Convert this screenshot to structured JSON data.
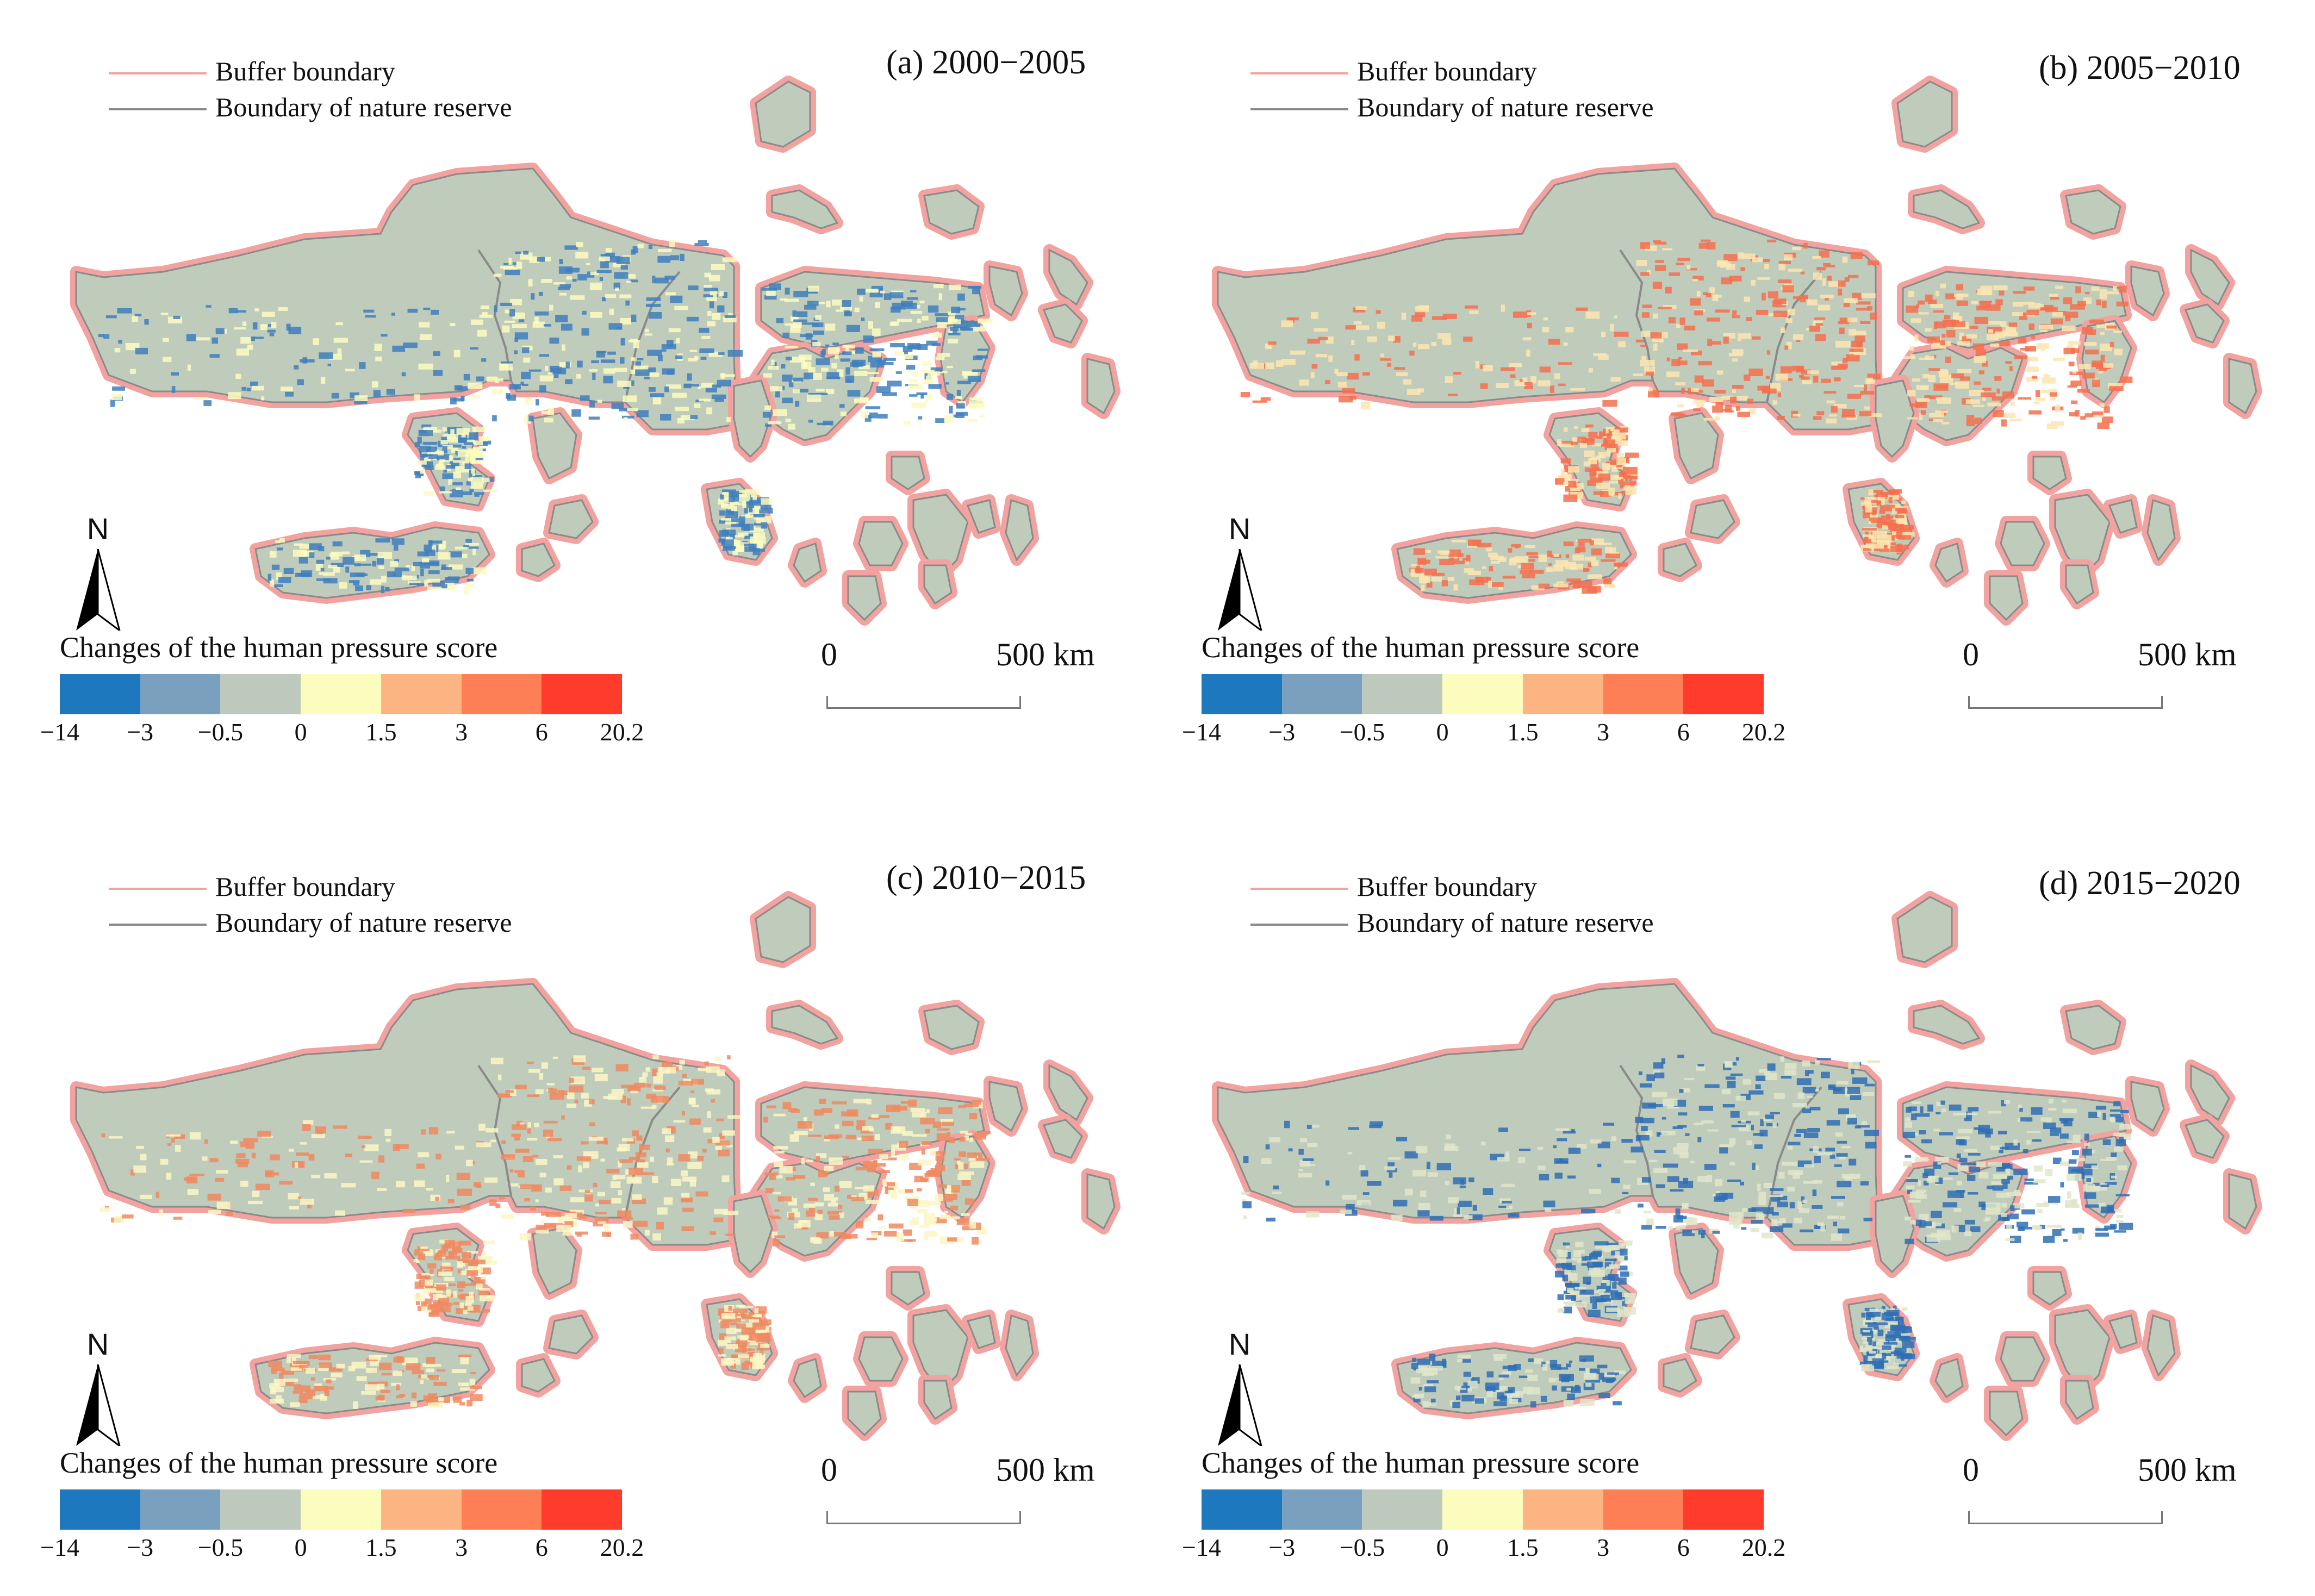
{
  "legend": {
    "buffer_label": "Buffer boundary",
    "reserve_label": "Boundary of nature reserve",
    "buffer_color": "#f2a3a0",
    "reserve_color": "#8a8a8a"
  },
  "colorbar": {
    "title": "Changes of the human pressure score",
    "ticks": [
      "−14",
      "−3",
      "−0.5",
      "0",
      "1.5",
      "3",
      "6",
      "20.2"
    ],
    "colors": [
      "#1e78bd",
      "#7aa0c0",
      "#bcc9bc",
      "#fdfcbf",
      "#fdb483",
      "#fe7e56",
      "#ff3b2c"
    ]
  },
  "north": {
    "label": "N",
    "icon": "north-arrow-icon"
  },
  "scale": {
    "start": "0",
    "end": "500 km"
  },
  "panels": [
    {
      "title": "(a) 2000−2005",
      "dominant_class": "decrease",
      "base_color": "#bfcbbb",
      "accent_color": "#3f7fbd",
      "secondary_color": "#fdfcbf"
    },
    {
      "title": "(b) 2005−2010",
      "dominant_class": "increase",
      "base_color": "#bfcbbb",
      "accent_color": "#f4704e",
      "secondary_color": "#fde6b0"
    },
    {
      "title": "(c) 2010−2015",
      "dominant_class": "mixed",
      "base_color": "#bfcbbb",
      "accent_color": "#f08a60",
      "secondary_color": "#fbf7c4"
    },
    {
      "title": "(d) 2015−2020",
      "dominant_class": "decrease",
      "base_color": "#bfcbbb",
      "accent_color": "#2f6fb5",
      "secondary_color": "#e0e6c9"
    }
  ]
}
